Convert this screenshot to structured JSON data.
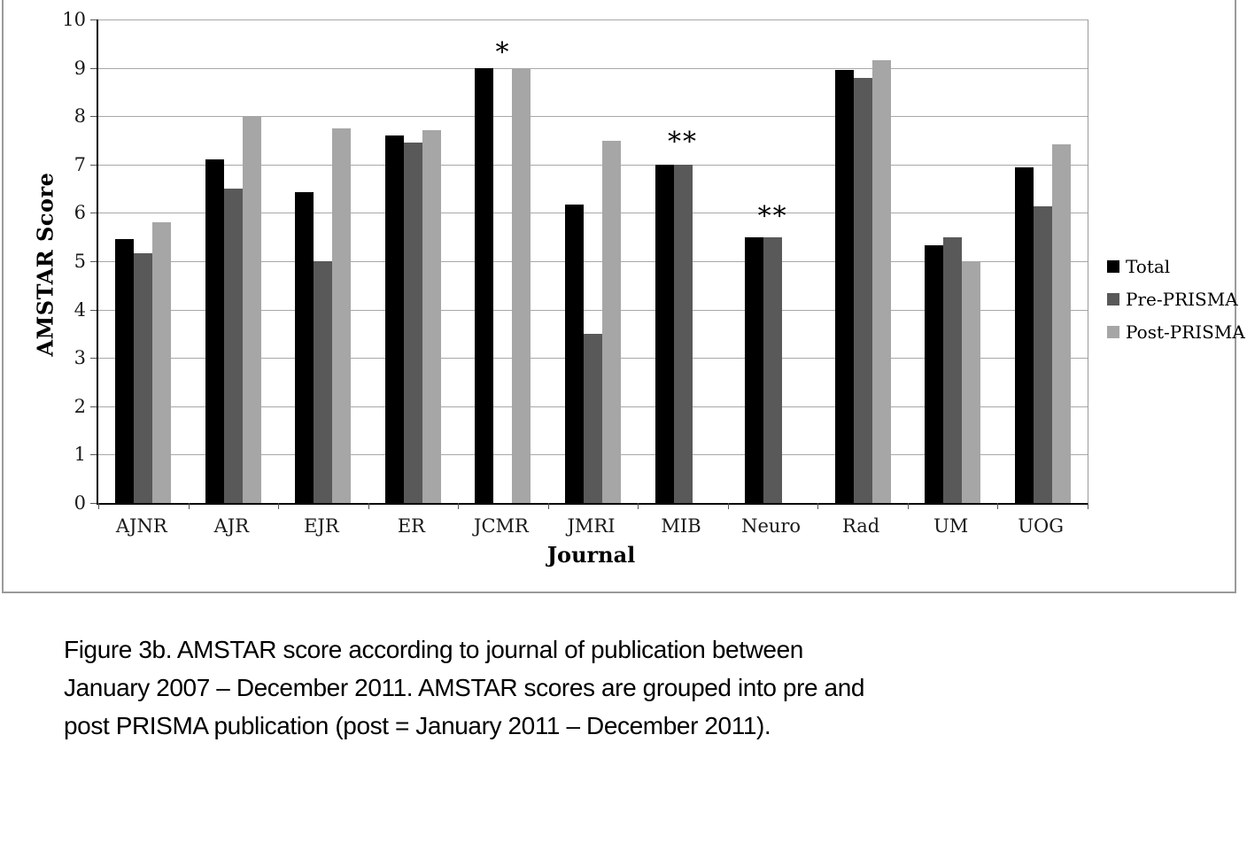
{
  "figure": {
    "caption_lines": [
      "Figure 3b. AMSTAR score according to journal of publication between",
      "January 2007 – December 2011. AMSTAR scores are grouped into pre and",
      "post PRISMA publication (post = January 2011 – December 2011)."
    ]
  },
  "chart_data": {
    "type": "bar",
    "title": "",
    "xlabel": "Journal",
    "ylabel": "AMSTAR Score",
    "ylim": [
      0,
      10
    ],
    "yticks": [
      0,
      1,
      2,
      3,
      4,
      5,
      6,
      7,
      8,
      9,
      10
    ],
    "grid": true,
    "legend_position": "right",
    "categories": [
      "AJNR",
      "AJR",
      "EJR",
      "ER",
      "JCMR",
      "JMRI",
      "MIB",
      "Neuro",
      "Rad",
      "UM",
      "UOG"
    ],
    "series": [
      {
        "name": "Total",
        "color": "#000000",
        "values": [
          5.45,
          7.1,
          6.43,
          7.6,
          9.0,
          6.17,
          7.0,
          5.5,
          8.95,
          5.33,
          6.95
        ]
      },
      {
        "name": "Pre-PRISMA",
        "color": "#595959",
        "values": [
          5.17,
          6.5,
          5.0,
          7.45,
          null,
          3.5,
          7.0,
          5.5,
          8.8,
          5.5,
          6.13
        ]
      },
      {
        "name": "Post-PRISMA",
        "color": "#a6a6a6",
        "values": [
          5.8,
          8.0,
          7.75,
          7.72,
          9.0,
          7.5,
          null,
          null,
          9.15,
          5.0,
          7.42
        ]
      }
    ],
    "annotations": [
      {
        "text": "*",
        "category": "JCMR",
        "value": 9.3
      },
      {
        "text": "**",
        "category": "MIB",
        "value": 7.45
      },
      {
        "text": "**",
        "category": "Neuro",
        "value": 5.92
      }
    ]
  }
}
